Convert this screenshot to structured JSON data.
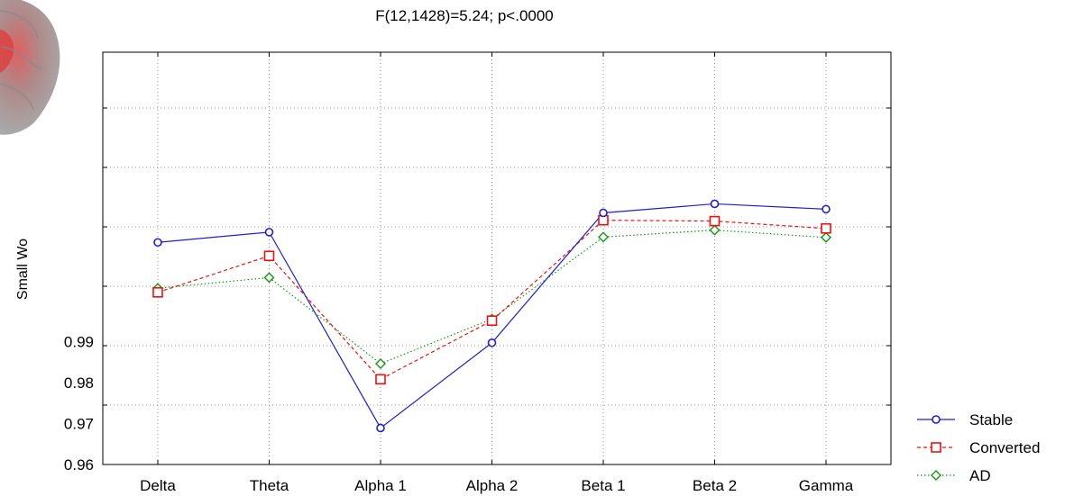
{
  "chart_data": {
    "type": "line",
    "title": "F(12,1428)=5.24; p<.0000",
    "ylabel": "Small Wo",
    "xlabel": "",
    "categories": [
      "Delta",
      "Theta",
      "Alpha 1",
      "Alpha 2",
      "Beta 1",
      "Beta 2",
      "Gamma"
    ],
    "ylim": [
      0.96,
      1.0606
    ],
    "yticks": [
      0.96,
      0.97,
      0.98,
      0.99
    ],
    "ytick_labels": [
      "0.96",
      "0.97",
      "0.98",
      "0.99"
    ],
    "grid": true,
    "legend_position": "bottom-right",
    "series": [
      {
        "name": "Stable",
        "color": "#1f1fd6",
        "line_style": "solid",
        "marker": "circle",
        "values": [
          1.0142,
          1.0167,
          0.9689,
          0.9897,
          1.0214,
          1.0236,
          1.0223
        ]
      },
      {
        "name": "Converted",
        "color": "#ee1111",
        "line_style": "dashed",
        "marker": "square",
        "values": [
          1.002,
          1.0109,
          0.9808,
          0.9951,
          1.0196,
          1.0194,
          1.0176
        ]
      },
      {
        "name": "AD",
        "color": "#119911",
        "line_style": "dotted",
        "marker": "diamond",
        "values": [
          1.003,
          1.0056,
          0.9846,
          0.9955,
          1.0155,
          1.0172,
          1.0154
        ]
      }
    ]
  },
  "legend": {
    "items": [
      "Stable",
      "Converted",
      "AD"
    ]
  }
}
